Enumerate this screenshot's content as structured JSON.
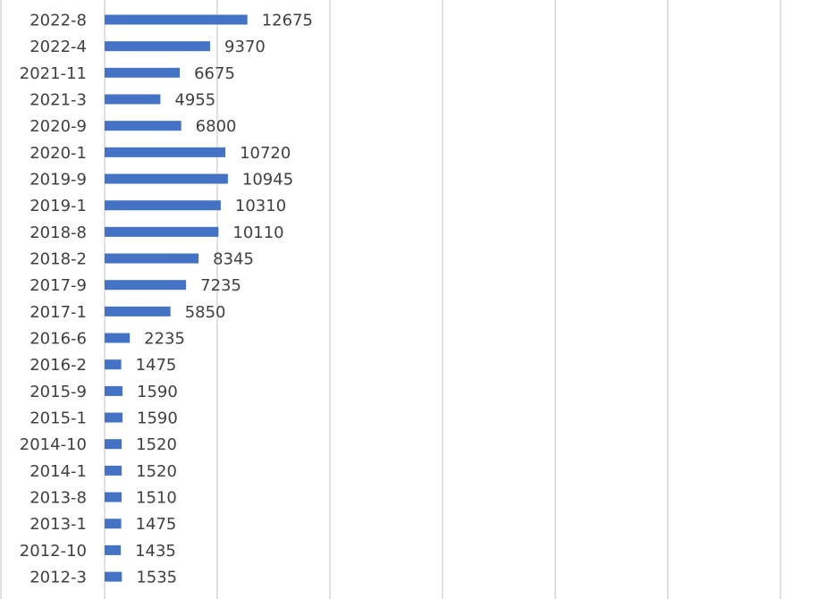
{
  "chart_data": {
    "type": "bar",
    "orientation": "horizontal",
    "categories": [
      "2022-8",
      "2022-4",
      "2021-11",
      "2021-3",
      "2020-9",
      "2020-1",
      "2019-9",
      "2019-1",
      "2018-8",
      "2018-2",
      "2017-9",
      "2017-1",
      "2016-6",
      "2016-2",
      "2015-9",
      "2015-1",
      "2014-10",
      "2014-1",
      "2013-8",
      "2013-1",
      "2012-10",
      "2012-3"
    ],
    "values": [
      12675,
      9370,
      6675,
      4955,
      6800,
      10720,
      10945,
      10310,
      10110,
      8345,
      7235,
      5850,
      2235,
      1475,
      1590,
      1590,
      1520,
      1520,
      1510,
      1475,
      1435,
      1535
    ],
    "xlim": [
      0,
      65000
    ],
    "grid": true,
    "bar_color": "#4472C4",
    "gridline_color": "#D9D9D9",
    "label_color": "#404040"
  }
}
